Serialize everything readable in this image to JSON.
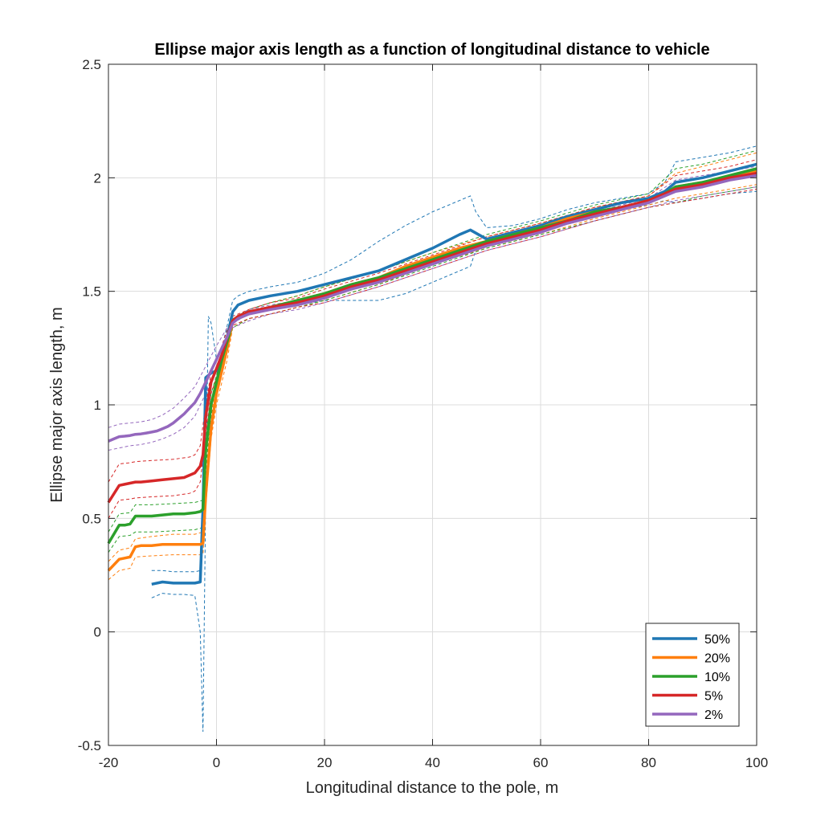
{
  "chart_data": {
    "type": "line",
    "title": "Ellipse major axis length as a function of longitudinal distance to vehicle",
    "xlabel": "Longitudinal distance to the pole, m",
    "ylabel": "Ellipse major axis length, m",
    "xlim": [
      -20,
      100
    ],
    "ylim": [
      -0.5,
      2.5
    ],
    "xticks": [
      -20,
      0,
      20,
      40,
      60,
      80,
      100
    ],
    "yticks": [
      -0.5,
      0,
      0.5,
      1,
      1.5,
      2,
      2.5
    ],
    "xtick_labels": [
      "-20",
      "0",
      "20",
      "40",
      "60",
      "80",
      "100"
    ],
    "ytick_labels": [
      "-0.5",
      "0",
      "0.5",
      "1",
      "1.5",
      "2",
      "2.5"
    ],
    "grid": true,
    "legend_position": "bottom-right",
    "series": [
      {
        "name": "50%",
        "color": "#1f77b4",
        "x": [
          -12,
          -10,
          -8,
          -6,
          -4,
          -3,
          -2.5,
          -2,
          -1,
          0,
          1,
          2,
          3,
          4,
          6,
          10,
          15,
          20,
          25,
          30,
          35,
          40,
          45,
          47,
          50,
          55,
          60,
          65,
          70,
          75,
          80,
          83,
          85,
          90,
          95,
          100
        ],
        "y": [
          0.21,
          0.22,
          0.215,
          0.215,
          0.215,
          0.22,
          0.55,
          1.12,
          1.14,
          1.15,
          1.2,
          1.3,
          1.41,
          1.44,
          1.46,
          1.48,
          1.5,
          1.53,
          1.56,
          1.59,
          1.64,
          1.69,
          1.75,
          1.77,
          1.73,
          1.76,
          1.79,
          1.83,
          1.86,
          1.89,
          1.91,
          1.94,
          1.98,
          2.0,
          2.03,
          2.06
        ],
        "bands": [
          {
            "x": [
              -12,
              -10,
              -8,
              -6,
              -4,
              -3,
              -2
            ],
            "y": [
              0.27,
              0.27,
              0.265,
              0.265,
              0.265,
              0.27,
              0.6
            ]
          },
          {
            "x": [
              -12,
              -10,
              -8,
              -6,
              -4,
              -3,
              -2.5,
              -2,
              -1.5,
              -1,
              0,
              1,
              2,
              3,
              4,
              6,
              10,
              15,
              20,
              25,
              30,
              35,
              40,
              45,
              47,
              48,
              50,
              55,
              60,
              65,
              70,
              75,
              80,
              83,
              85,
              90,
              95,
              100
            ],
            "y": [
              0.15,
              0.17,
              0.165,
              0.165,
              0.16,
              0.0,
              -0.44,
              0.6,
              1.39,
              1.36,
              1.2,
              1.25,
              1.35,
              1.46,
              1.48,
              1.5,
              1.52,
              1.54,
              1.58,
              1.64,
              1.72,
              1.79,
              1.85,
              1.9,
              1.92,
              1.85,
              1.78,
              1.79,
              1.82,
              1.86,
              1.89,
              1.91,
              1.93,
              1.98,
              2.07,
              2.09,
              2.11,
              2.14
            ]
          },
          {
            "x": [
              3,
              6,
              10,
              15,
              20,
              25,
              30,
              35,
              40,
              45,
              47,
              48,
              50,
              55,
              60,
              65,
              70,
              75,
              80,
              83,
              85,
              90,
              95,
              100
            ],
            "y": [
              1.36,
              1.4,
              1.42,
              1.44,
              1.46,
              1.46,
              1.46,
              1.49,
              1.54,
              1.59,
              1.61,
              1.68,
              1.7,
              1.73,
              1.76,
              1.8,
              1.83,
              1.86,
              1.88,
              1.9,
              1.89,
              1.91,
              1.93,
              1.94
            ]
          }
        ]
      },
      {
        "name": "20%",
        "color": "#ff7f0e",
        "x": [
          -20,
          -18,
          -17,
          -16,
          -15,
          -14,
          -12,
          -10,
          -8,
          -6,
          -4,
          -3,
          -2.5,
          -2,
          -1,
          0,
          1,
          2,
          3,
          4,
          6,
          10,
          15,
          20,
          25,
          30,
          35,
          40,
          45,
          50,
          55,
          60,
          65,
          70,
          75,
          80,
          83,
          85,
          90,
          95,
          100
        ],
        "y": [
          0.27,
          0.32,
          0.325,
          0.33,
          0.375,
          0.38,
          0.38,
          0.385,
          0.385,
          0.385,
          0.385,
          0.385,
          0.39,
          0.6,
          0.9,
          1.05,
          1.15,
          1.25,
          1.37,
          1.39,
          1.41,
          1.43,
          1.46,
          1.49,
          1.53,
          1.56,
          1.61,
          1.65,
          1.69,
          1.72,
          1.75,
          1.78,
          1.82,
          1.85,
          1.87,
          1.9,
          1.93,
          1.96,
          1.98,
          2.0,
          2.03
        ],
        "bands": [
          {
            "x": [
              -20,
              -18,
              -16,
              -15,
              -12,
              -8,
              -4,
              -2.5,
              -2,
              -1,
              0,
              1,
              2,
              3,
              6,
              10,
              15,
              20,
              30,
              40,
              50,
              60,
              70,
              80,
              85,
              90,
              95,
              100
            ],
            "y": [
              0.31,
              0.36,
              0.37,
              0.41,
              0.42,
              0.43,
              0.43,
              0.44,
              0.7,
              0.95,
              1.1,
              1.2,
              1.3,
              1.38,
              1.42,
              1.45,
              1.48,
              1.52,
              1.59,
              1.67,
              1.74,
              1.8,
              1.87,
              1.92,
              2.02,
              2.05,
              2.08,
              2.11
            ]
          },
          {
            "x": [
              -20,
              -18,
              -16,
              -15,
              -12,
              -8,
              -4,
              -2.5,
              -2,
              -1,
              0,
              1,
              2,
              3,
              6,
              10,
              15,
              20,
              30,
              40,
              50,
              60,
              70,
              80,
              85,
              90,
              95,
              100
            ],
            "y": [
              0.23,
              0.27,
              0.28,
              0.33,
              0.335,
              0.34,
              0.34,
              0.34,
              0.55,
              0.85,
              1.0,
              1.1,
              1.2,
              1.34,
              1.38,
              1.4,
              1.43,
              1.46,
              1.53,
              1.62,
              1.69,
              1.75,
              1.82,
              1.88,
              1.91,
              1.93,
              1.95,
              1.97
            ]
          }
        ]
      },
      {
        "name": "10%",
        "color": "#2ca02c",
        "x": [
          -20,
          -18,
          -17,
          -16,
          -15,
          -14,
          -12,
          -10,
          -8,
          -6,
          -4,
          -3,
          -2.5,
          -2,
          -1,
          0,
          1,
          2,
          3,
          4,
          6,
          10,
          15,
          20,
          25,
          30,
          35,
          40,
          45,
          50,
          55,
          60,
          65,
          70,
          75,
          80,
          83,
          85,
          90,
          95,
          100
        ],
        "y": [
          0.39,
          0.47,
          0.47,
          0.475,
          0.51,
          0.51,
          0.51,
          0.515,
          0.52,
          0.52,
          0.525,
          0.53,
          0.54,
          0.8,
          1.0,
          1.1,
          1.2,
          1.28,
          1.37,
          1.39,
          1.41,
          1.43,
          1.46,
          1.49,
          1.53,
          1.56,
          1.6,
          1.64,
          1.68,
          1.72,
          1.75,
          1.78,
          1.81,
          1.85,
          1.87,
          1.9,
          1.93,
          1.96,
          1.98,
          2.01,
          2.04
        ],
        "bands": [
          {
            "x": [
              -20,
              -18,
              -16,
              -15,
              -12,
              -8,
              -4,
              -2.5,
              -2,
              -1,
              0,
              1,
              2,
              3,
              6,
              10,
              15,
              20,
              30,
              40,
              50,
              60,
              70,
              80,
              85,
              90,
              95,
              100
            ],
            "y": [
              0.44,
              0.52,
              0.525,
              0.56,
              0.56,
              0.565,
              0.57,
              0.58,
              0.85,
              1.05,
              1.13,
              1.22,
              1.3,
              1.38,
              1.42,
              1.45,
              1.48,
              1.52,
              1.59,
              1.67,
              1.75,
              1.81,
              1.88,
              1.93,
              2.04,
              2.06,
              2.09,
              2.12
            ]
          },
          {
            "x": [
              -20,
              -18,
              -16,
              -15,
              -12,
              -8,
              -4,
              -2.5,
              -2,
              -1,
              0,
              1,
              2,
              3,
              6,
              10,
              15,
              20,
              30,
              40,
              50,
              60,
              70,
              80,
              85,
              90,
              95,
              100
            ],
            "y": [
              0.35,
              0.42,
              0.425,
              0.44,
              0.44,
              0.445,
              0.45,
              0.46,
              0.72,
              0.95,
              1.05,
              1.15,
              1.25,
              1.34,
              1.38,
              1.4,
              1.43,
              1.46,
              1.53,
              1.61,
              1.69,
              1.75,
              1.81,
              1.87,
              1.89,
              1.92,
              1.94,
              1.96
            ]
          }
        ]
      },
      {
        "name": "5%",
        "color": "#d62728",
        "x": [
          -20,
          -18,
          -17,
          -16,
          -15,
          -14,
          -12,
          -10,
          -8,
          -6,
          -5,
          -4,
          -3,
          -2.5,
          -2,
          -1,
          0,
          1,
          2,
          3,
          4,
          6,
          10,
          15,
          20,
          25,
          30,
          35,
          40,
          45,
          50,
          55,
          60,
          65,
          70,
          75,
          80,
          83,
          85,
          90,
          95,
          100
        ],
        "y": [
          0.57,
          0.645,
          0.65,
          0.655,
          0.66,
          0.66,
          0.665,
          0.67,
          0.675,
          0.68,
          0.69,
          0.7,
          0.73,
          0.78,
          0.95,
          1.1,
          1.16,
          1.22,
          1.3,
          1.37,
          1.39,
          1.41,
          1.43,
          1.45,
          1.48,
          1.52,
          1.55,
          1.59,
          1.63,
          1.67,
          1.71,
          1.74,
          1.77,
          1.81,
          1.84,
          1.87,
          1.9,
          1.93,
          1.95,
          1.97,
          2.0,
          2.02
        ],
        "bands": [
          {
            "x": [
              -20,
              -18,
              -16,
              -15,
              -12,
              -8,
              -5,
              -4,
              -3,
              -2,
              -1,
              0,
              1,
              2,
              3,
              6,
              10,
              15,
              20,
              30,
              40,
              50,
              60,
              70,
              80,
              85,
              90,
              95,
              100
            ],
            "y": [
              0.66,
              0.74,
              0.745,
              0.75,
              0.755,
              0.76,
              0.77,
              0.78,
              0.82,
              1.0,
              1.14,
              1.2,
              1.26,
              1.33,
              1.39,
              1.42,
              1.45,
              1.47,
              1.51,
              1.58,
              1.66,
              1.74,
              1.8,
              1.87,
              1.92,
              2.01,
              2.03,
              2.05,
              2.08
            ]
          },
          {
            "x": [
              -20,
              -18,
              -16,
              -15,
              -12,
              -8,
              -5,
              -4,
              -3,
              -2,
              -1,
              0,
              1,
              2,
              3,
              6,
              10,
              15,
              20,
              30,
              40,
              50,
              60,
              70,
              80,
              85,
              90,
              95,
              100
            ],
            "y": [
              0.5,
              0.58,
              0.585,
              0.59,
              0.595,
              0.6,
              0.61,
              0.62,
              0.66,
              0.88,
              1.05,
              1.12,
              1.18,
              1.27,
              1.35,
              1.38,
              1.4,
              1.43,
              1.45,
              1.52,
              1.6,
              1.68,
              1.74,
              1.81,
              1.87,
              1.89,
              1.91,
              1.93,
              1.95
            ]
          }
        ]
      },
      {
        "name": "2%",
        "color": "#9467bd",
        "x": [
          -20,
          -19,
          -18,
          -17,
          -16,
          -15,
          -14,
          -13,
          -12,
          -11,
          -10,
          -9,
          -8,
          -7,
          -6,
          -5,
          -4,
          -3,
          -2,
          -1,
          0,
          1,
          2,
          3,
          4,
          6,
          10,
          15,
          20,
          25,
          30,
          35,
          40,
          45,
          50,
          55,
          60,
          65,
          70,
          75,
          80,
          83,
          85,
          90,
          95,
          100
        ],
        "y": [
          0.84,
          0.85,
          0.86,
          0.862,
          0.865,
          0.87,
          0.872,
          0.876,
          0.88,
          0.885,
          0.895,
          0.905,
          0.92,
          0.94,
          0.96,
          0.985,
          1.01,
          1.05,
          1.1,
          1.15,
          1.2,
          1.25,
          1.3,
          1.36,
          1.38,
          1.4,
          1.42,
          1.44,
          1.47,
          1.51,
          1.54,
          1.58,
          1.62,
          1.66,
          1.7,
          1.73,
          1.76,
          1.8,
          1.83,
          1.86,
          1.89,
          1.92,
          1.94,
          1.96,
          1.99,
          2.01
        ],
        "bands": [
          {
            "x": [
              -20,
              -18,
              -16,
              -14,
              -12,
              -10,
              -8,
              -6,
              -4,
              -2,
              0,
              2,
              3,
              6,
              10,
              15,
              20,
              30,
              40,
              50,
              60,
              70,
              80,
              85,
              90,
              95,
              100
            ],
            "y": [
              0.9,
              0.915,
              0.92,
              0.925,
              0.935,
              0.955,
              0.985,
              1.03,
              1.08,
              1.17,
              1.26,
              1.34,
              1.38,
              1.42,
              1.44,
              1.46,
              1.49,
              1.56,
              1.64,
              1.72,
              1.78,
              1.85,
              1.91,
              1.99,
              2.01,
              2.03,
              2.05
            ]
          },
          {
            "x": [
              -20,
              -18,
              -16,
              -14,
              -12,
              -10,
              -8,
              -6,
              -4,
              -2,
              0,
              2,
              3,
              6,
              10,
              15,
              20,
              30,
              40,
              50,
              60,
              70,
              80,
              85,
              90,
              95,
              100
            ],
            "y": [
              0.8,
              0.81,
              0.82,
              0.825,
              0.835,
              0.85,
              0.87,
              0.9,
              0.95,
              1.05,
              1.15,
              1.26,
              1.34,
              1.37,
              1.4,
              1.42,
              1.45,
              1.52,
              1.6,
              1.68,
              1.74,
              1.81,
              1.87,
              1.9,
              1.92,
              1.94,
              1.96
            ]
          }
        ]
      }
    ]
  }
}
